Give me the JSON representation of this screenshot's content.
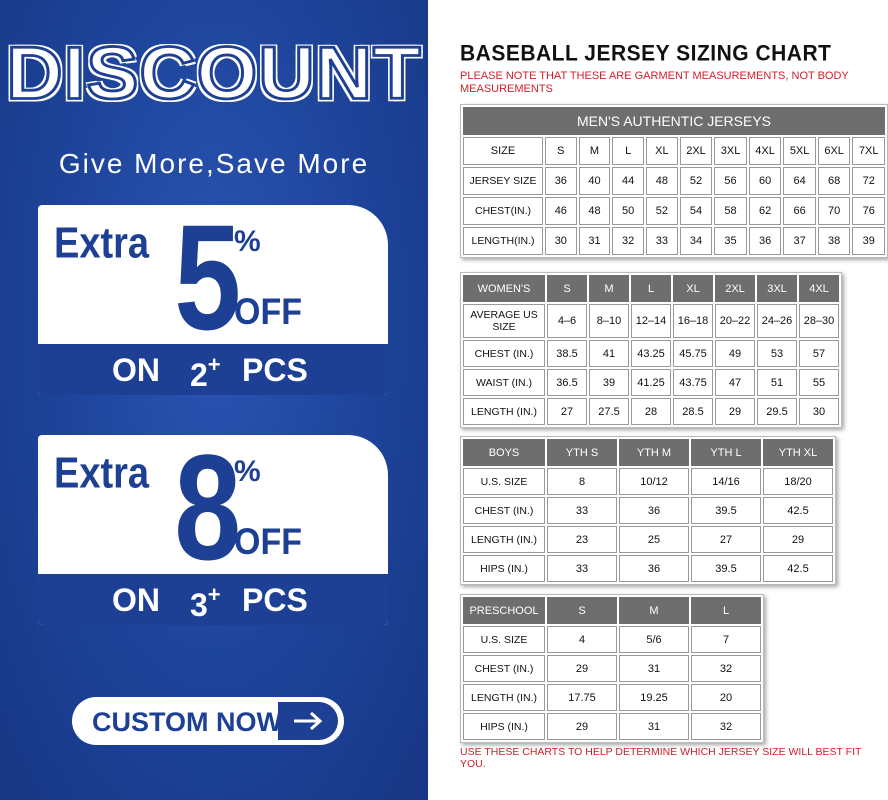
{
  "promo": {
    "title": "DISCOUNT",
    "slogan": "Give More,Save More",
    "offers": [
      {
        "extra": "Extra",
        "amount": "5",
        "percent": "%",
        "off": "OFF",
        "on": "ON",
        "qty": "2",
        "plus": "+",
        "pcs": "PCS"
      },
      {
        "extra": "Extra",
        "amount": "8",
        "percent": "%",
        "off": "OFF",
        "on": "ON",
        "qty": "3",
        "plus": "+",
        "pcs": "PCS"
      }
    ],
    "button": "CUSTOM NOW"
  },
  "sizing": {
    "title": "BASEBALL JERSEY SIZING CHART",
    "note": "PLEASE NOTE THAT THESE ARE GARMENT MEASUREMENTS, NOT BODY MEASUREMENTS",
    "footer": "USE THESE CHARTS TO HELP DETERMINE WHICH JERSEY SIZE WILL BEST FIT YOU.",
    "tables": [
      {
        "title": "MEN'S AUTHENTIC JERSEYS",
        "header": [
          "SIZE",
          "S",
          "M",
          "L",
          "XL",
          "2XL",
          "3XL",
          "4XL",
          "5XL",
          "6XL",
          "7XL"
        ],
        "rows": [
          [
            "JERSEY SIZE",
            "36",
            "40",
            "44",
            "48",
            "52",
            "56",
            "60",
            "64",
            "68",
            "72"
          ],
          [
            "CHEST(IN.)",
            "46",
            "48",
            "50",
            "52",
            "54",
            "58",
            "62",
            "66",
            "70",
            "76"
          ],
          [
            "LENGTH(IN.)",
            "30",
            "31",
            "32",
            "33",
            "34",
            "35",
            "36",
            "37",
            "38",
            "39"
          ]
        ]
      },
      {
        "header": [
          "WOMEN'S",
          "S",
          "M",
          "L",
          "XL",
          "2XL",
          "3XL",
          "4XL"
        ],
        "rows": [
          [
            "AVERAGE US SIZE",
            "4–6",
            "8–10",
            "12–14",
            "16–18",
            "20–22",
            "24–26",
            "28–30"
          ],
          [
            "CHEST (IN.)",
            "38.5",
            "41",
            "43.25",
            "45.75",
            "49",
            "53",
            "57"
          ],
          [
            "WAIST (IN.)",
            "36.5",
            "39",
            "41.25",
            "43.75",
            "47",
            "51",
            "55"
          ],
          [
            "LENGTH (IN.)",
            "27",
            "27.5",
            "28",
            "28.5",
            "29",
            "29.5",
            "30"
          ]
        ]
      },
      {
        "header": [
          "BOYS",
          "YTH S",
          "YTH M",
          "YTH L",
          "YTH XL"
        ],
        "rows": [
          [
            "U.S. SIZE",
            "8",
            "10/12",
            "14/16",
            "18/20"
          ],
          [
            "CHEST (IN.)",
            "33",
            "36",
            "39.5",
            "42.5"
          ],
          [
            "LENGTH (IN.)",
            "23",
            "25",
            "27",
            "29"
          ],
          [
            "HIPS (IN.)",
            "33",
            "36",
            "39.5",
            "42.5"
          ]
        ]
      },
      {
        "header": [
          "PRESCHOOL",
          "S",
          "M",
          "L"
        ],
        "rows": [
          [
            "U.S. SIZE",
            "4",
            "5/6",
            "7"
          ],
          [
            "CHEST (IN.)",
            "29",
            "31",
            "32"
          ],
          [
            "LENGTH (IN.)",
            "17.75",
            "19.25",
            "20"
          ],
          [
            "HIPS (IN.)",
            "29",
            "31",
            "32"
          ]
        ]
      }
    ]
  }
}
